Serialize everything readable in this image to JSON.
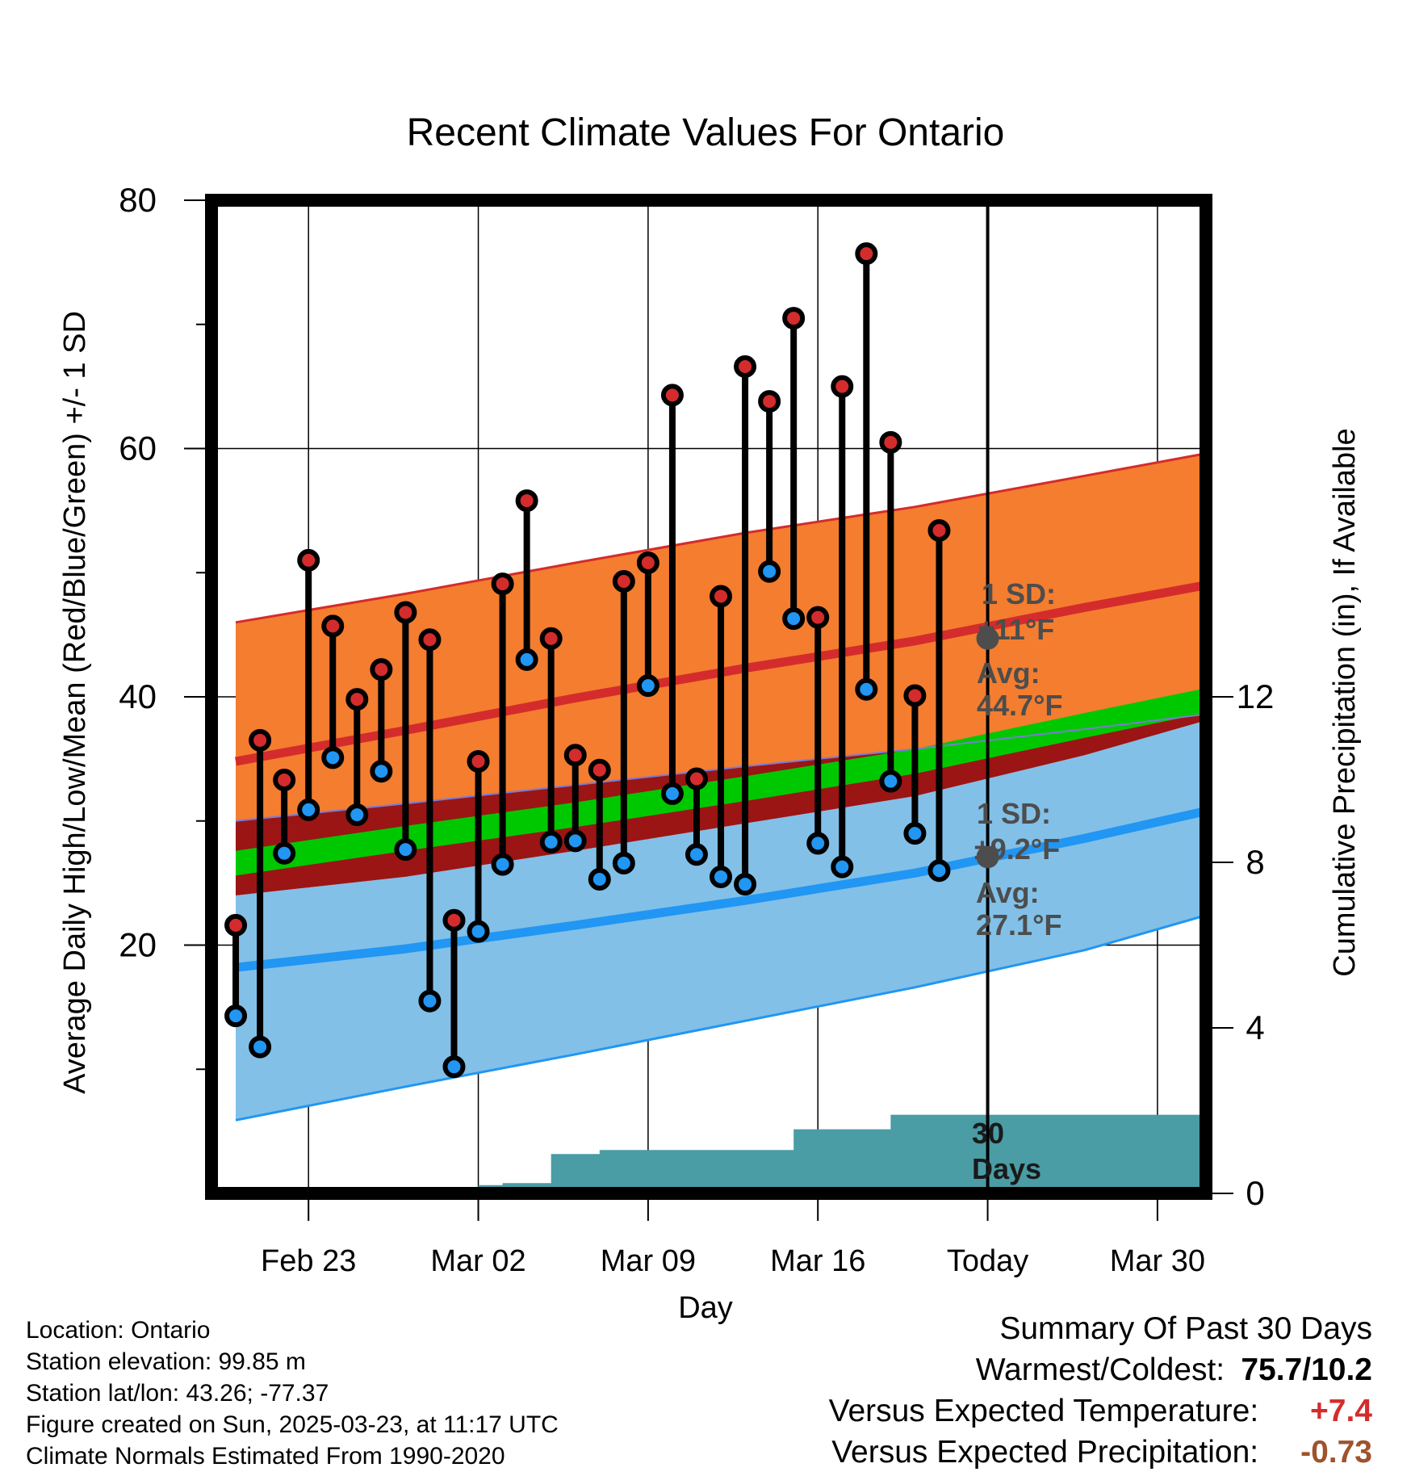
{
  "chart_data": {
    "type": "line",
    "title": "Recent Climate Values For Ontario",
    "xlabel": "Day",
    "ylabel": "Average Daily High/Low/Mean (Red/Blue/Green) +/- 1 SD",
    "y2label": "Cumulative Precipitation (in), If Available",
    "ylim": [
      0,
      80
    ],
    "y2lim": [
      0,
      24
    ],
    "yticks": [
      20,
      40,
      60,
      80
    ],
    "y2ticks": [
      0,
      4,
      8,
      12
    ],
    "xlim": [
      "2025-02-19",
      "2025-04-01"
    ],
    "xticks": [
      {
        "date": "2025-02-23",
        "label": "Feb 23"
      },
      {
        "date": "2025-03-02",
        "label": "Mar 02"
      },
      {
        "date": "2025-03-09",
        "label": "Mar 09"
      },
      {
        "date": "2025-03-16",
        "label": "Mar 16"
      },
      {
        "date": "2025-03-23",
        "label": "Today"
      },
      {
        "date": "2025-03-30",
        "label": "Mar 30"
      }
    ],
    "grid": true,
    "today": "2025-03-23",
    "normals": {
      "dates": [
        "2025-02-20",
        "2025-02-27",
        "2025-03-06",
        "2025-03-13",
        "2025-03-20",
        "2025-03-27",
        "2025-04-01"
      ],
      "high_avg": [
        34.8,
        37.3,
        39.9,
        42.3,
        44.5,
        47.2,
        49.0
      ],
      "high_sd_upper": [
        46.0,
        48.3,
        50.8,
        53.2,
        55.3,
        57.8,
        59.6
      ],
      "high_sd_lower": [
        30.0,
        31.4,
        32.9,
        34.4,
        35.8,
        37.4,
        38.6
      ],
      "low_avg": [
        18.2,
        19.7,
        21.6,
        23.6,
        25.8,
        28.6,
        30.8
      ],
      "low_sd_upper": [
        24.0,
        25.5,
        27.6,
        29.8,
        32.0,
        35.3,
        38.1
      ],
      "low_sd_lower": [
        5.9,
        8.6,
        11.2,
        13.9,
        16.6,
        19.6,
        22.4
      ],
      "mean_avg": [
        26.6,
        28.6,
        30.5,
        32.6,
        34.8,
        37.7,
        39.7
      ]
    },
    "series": [
      {
        "name": "High",
        "color": "#d42c2c",
        "dates": [
          "2025-02-20",
          "2025-02-21",
          "2025-02-22",
          "2025-02-23",
          "2025-02-24",
          "2025-02-25",
          "2025-02-26",
          "2025-02-27",
          "2025-02-28",
          "2025-03-01",
          "2025-03-02",
          "2025-03-03",
          "2025-03-04",
          "2025-03-05",
          "2025-03-06",
          "2025-03-07",
          "2025-03-08",
          "2025-03-09",
          "2025-03-10",
          "2025-03-11",
          "2025-03-12",
          "2025-03-13",
          "2025-03-14",
          "2025-03-15",
          "2025-03-16",
          "2025-03-17",
          "2025-03-18",
          "2025-03-19",
          "2025-03-20",
          "2025-03-21",
          "2025-03-22"
        ],
        "values": [
          21.6,
          36.5,
          33.3,
          51.0,
          45.7,
          39.8,
          42.2,
          46.8,
          44.6,
          22.0,
          34.8,
          49.1,
          55.8,
          44.7,
          35.3,
          34.1,
          49.3,
          50.8,
          64.3,
          33.4,
          48.1,
          66.6,
          63.8,
          70.5,
          46.4,
          65.0,
          75.7,
          60.5,
          40.1,
          53.4,
          null
        ]
      },
      {
        "name": "Low",
        "color": "#2196f3",
        "dates": [
          "2025-02-20",
          "2025-02-21",
          "2025-02-22",
          "2025-02-23",
          "2025-02-24",
          "2025-02-25",
          "2025-02-26",
          "2025-02-27",
          "2025-02-28",
          "2025-03-01",
          "2025-03-02",
          "2025-03-03",
          "2025-03-04",
          "2025-03-05",
          "2025-03-06",
          "2025-03-07",
          "2025-03-08",
          "2025-03-09",
          "2025-03-10",
          "2025-03-11",
          "2025-03-12",
          "2025-03-13",
          "2025-03-14",
          "2025-03-15",
          "2025-03-16",
          "2025-03-17",
          "2025-03-18",
          "2025-03-19",
          "2025-03-20",
          "2025-03-21",
          "2025-03-22"
        ],
        "values": [
          14.3,
          11.8,
          27.4,
          30.9,
          35.1,
          30.5,
          34.0,
          27.7,
          15.5,
          10.2,
          21.1,
          26.5,
          43.0,
          28.3,
          28.4,
          25.3,
          26.6,
          40.9,
          32.2,
          27.3,
          25.5,
          24.9,
          50.1,
          46.3,
          28.2,
          26.3,
          40.6,
          33.2,
          29.0,
          26.0,
          null
        ]
      }
    ],
    "precipitation": {
      "dates": [
        "2025-02-19",
        "2025-02-24",
        "2025-02-25",
        "2025-02-26",
        "2025-02-27",
        "2025-03-02",
        "2025-03-03",
        "2025-03-04",
        "2025-03-05",
        "2025-03-06",
        "2025-03-07",
        "2025-03-08",
        "2025-03-14",
        "2025-03-15",
        "2025-03-18",
        "2025-03-19",
        "2025-03-23",
        "2025-04-01"
      ],
      "values": [
        0.0,
        0.0,
        0.05,
        0.1,
        0.15,
        0.2,
        0.25,
        0.25,
        0.95,
        0.95,
        1.05,
        1.05,
        1.05,
        1.55,
        1.55,
        1.9,
        1.9,
        1.9
      ]
    },
    "annotations": [
      {
        "title": "1 SD:",
        "sd": "±11°F",
        "avg_label": "Avg:",
        "avg": "44.7°F",
        "avg_value": 44.7
      },
      {
        "title": "1 SD:",
        "sd": "±9.2°F",
        "avg_label": "Avg:",
        "avg": "27.1°F",
        "avg_value": 27.1
      }
    ],
    "period_label": [
      "30",
      "Days"
    ],
    "colors": {
      "high_band": "#f47d2f",
      "high_line": "#d42c2c",
      "low_band": "#82c0e8",
      "low_line": "#2196f3",
      "overlap_band": "#9b1515",
      "mean_band": "#00c800",
      "precip": "#4a9ca5",
      "annotation": "#4d4d4d"
    }
  },
  "info": {
    "location": "Location: Ontario",
    "elevation": "Station elevation: 99.85 m",
    "latlon": "Station lat/lon: 43.26; -77.37",
    "created": "Figure created on Sun, 2025-03-23, at 11:17 UTC",
    "normals": "Climate Normals Estimated From 1990-2020"
  },
  "summary": {
    "title": "Summary Of Past 30 Days",
    "warm_cold_label": "Warmest/Coldest:",
    "warm_cold_value": "75.7/10.2",
    "temp_label": "Versus Expected Temperature:",
    "temp_value": "+7.4",
    "temp_color": "#d42c2c",
    "precip_label": "Versus Expected Precipitation:",
    "precip_value": "-0.73",
    "precip_color": "#a0522d"
  }
}
